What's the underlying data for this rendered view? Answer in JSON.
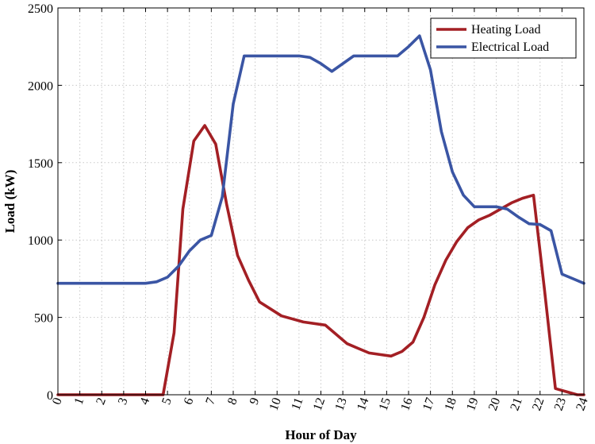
{
  "chart_data": {
    "type": "line",
    "title": "",
    "xlabel": "Hour of Day",
    "ylabel": "Load (kW)",
    "xlim": [
      0,
      24
    ],
    "ylim": [
      0,
      2500
    ],
    "xticks": [
      0,
      1,
      2,
      3,
      4,
      5,
      6,
      7,
      8,
      9,
      10,
      11,
      12,
      13,
      14,
      15,
      16,
      17,
      18,
      19,
      20,
      21,
      22,
      23,
      24
    ],
    "yticks": [
      0,
      500,
      1000,
      1500,
      2000,
      2500
    ],
    "grid": true,
    "legend_position": "top-right",
    "series": [
      {
        "name": "Heating Load",
        "color": "#a31f24",
        "x": [
          0,
          4,
          4.8,
          5.3,
          5.7,
          6.2,
          6.7,
          7.2,
          7.7,
          8.2,
          8.7,
          9.2,
          10.2,
          11.2,
          12.2,
          12.7,
          13.2,
          13.7,
          14.2,
          14.7,
          15.2,
          15.7,
          16.2,
          16.7,
          17.2,
          17.7,
          18.2,
          18.7,
          19.2,
          19.7,
          20.2,
          20.7,
          21.2,
          21.7,
          22.2,
          22.7,
          23.2,
          23.7,
          24
        ],
        "y": [
          0,
          0,
          0,
          400,
          1200,
          1640,
          1740,
          1620,
          1230,
          900,
          740,
          600,
          510,
          470,
          450,
          390,
          330,
          300,
          270,
          260,
          250,
          280,
          340,
          500,
          710,
          870,
          990,
          1080,
          1130,
          1160,
          1200,
          1240,
          1270,
          1290,
          680,
          40,
          20,
          0,
          0
        ]
      },
      {
        "name": "Electrical Load",
        "color": "#3a55a4",
        "x": [
          0,
          4,
          4.5,
          5,
          5.5,
          6,
          6.5,
          7,
          7.5,
          8,
          8.5,
          9,
          10,
          11,
          11.5,
          12,
          12.5,
          13,
          13.5,
          14,
          15,
          15.5,
          16,
          16.5,
          17,
          17.5,
          18,
          18.5,
          19,
          19.5,
          20,
          20.5,
          21,
          21.5,
          22,
          22.5,
          23,
          23.5,
          24
        ],
        "y": [
          720,
          720,
          730,
          760,
          830,
          930,
          1000,
          1030,
          1280,
          1880,
          2190,
          2190,
          2190,
          2190,
          2180,
          2140,
          2090,
          2140,
          2190,
          2190,
          2190,
          2190,
          2250,
          2320,
          2100,
          1700,
          1440,
          1290,
          1215,
          1215,
          1215,
          1200,
          1150,
          1105,
          1100,
          1060,
          780,
          750,
          720
        ]
      }
    ]
  }
}
